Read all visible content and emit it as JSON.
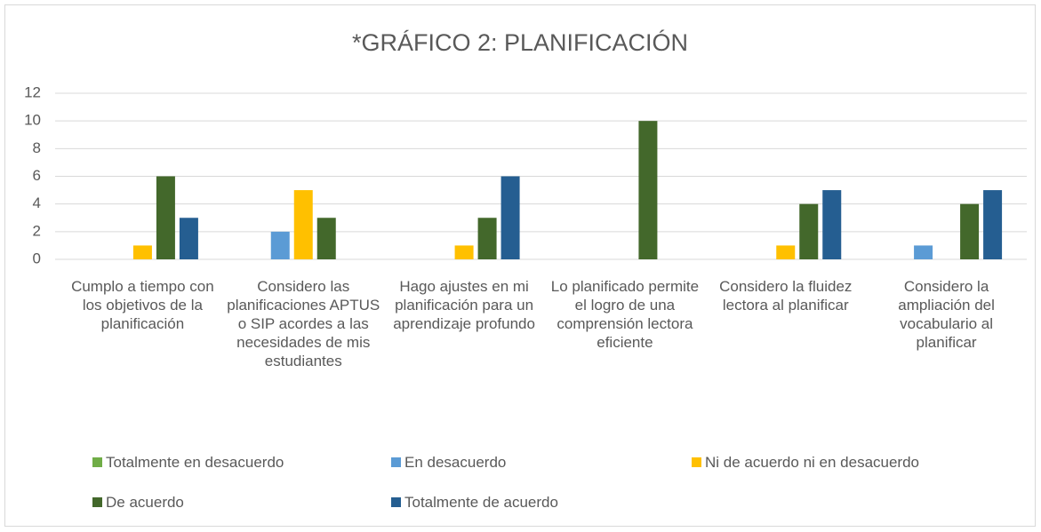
{
  "chart_data": {
    "type": "bar",
    "title": "*GRÁFICO 2: PLANIFICACIÓN",
    "categories": [
      "Cumplo a tiempo con los objetivos de la planificación",
      "Considero las planificaciones APTUS o SIP acordes a las necesidades de mis estudiantes",
      "Hago ajustes en mi planificación para un aprendizaje profundo",
      "Lo planificado permite el logro de una comprensión lectora eficiente",
      "Considero la fluidez lectora al planificar",
      "Considero la ampliación del vocabulario al planificar"
    ],
    "series": [
      {
        "name": "Totalmente en desacuerdo",
        "color": "#70ad47",
        "values": [
          0,
          0,
          0,
          0,
          0,
          0
        ]
      },
      {
        "name": "En desacuerdo",
        "color": "#5b9bd5",
        "values": [
          0,
          2,
          0,
          0,
          0,
          1
        ]
      },
      {
        "name": "Ni de acuerdo ni en desacuerdo",
        "color": "#ffc000",
        "values": [
          1,
          5,
          1,
          0,
          1,
          0
        ]
      },
      {
        "name": "De acuerdo",
        "color": "#43682b",
        "values": [
          6,
          3,
          3,
          10,
          4,
          4
        ]
      },
      {
        "name": "Totalmente de acuerdo",
        "color": "#255e91",
        "values": [
          3,
          0,
          6,
          0,
          5,
          5
        ]
      }
    ],
    "ylim": [
      0,
      12
    ],
    "yticks": [
      0,
      2,
      4,
      6,
      8,
      10,
      12
    ],
    "grid": true,
    "legend": "bottom"
  }
}
